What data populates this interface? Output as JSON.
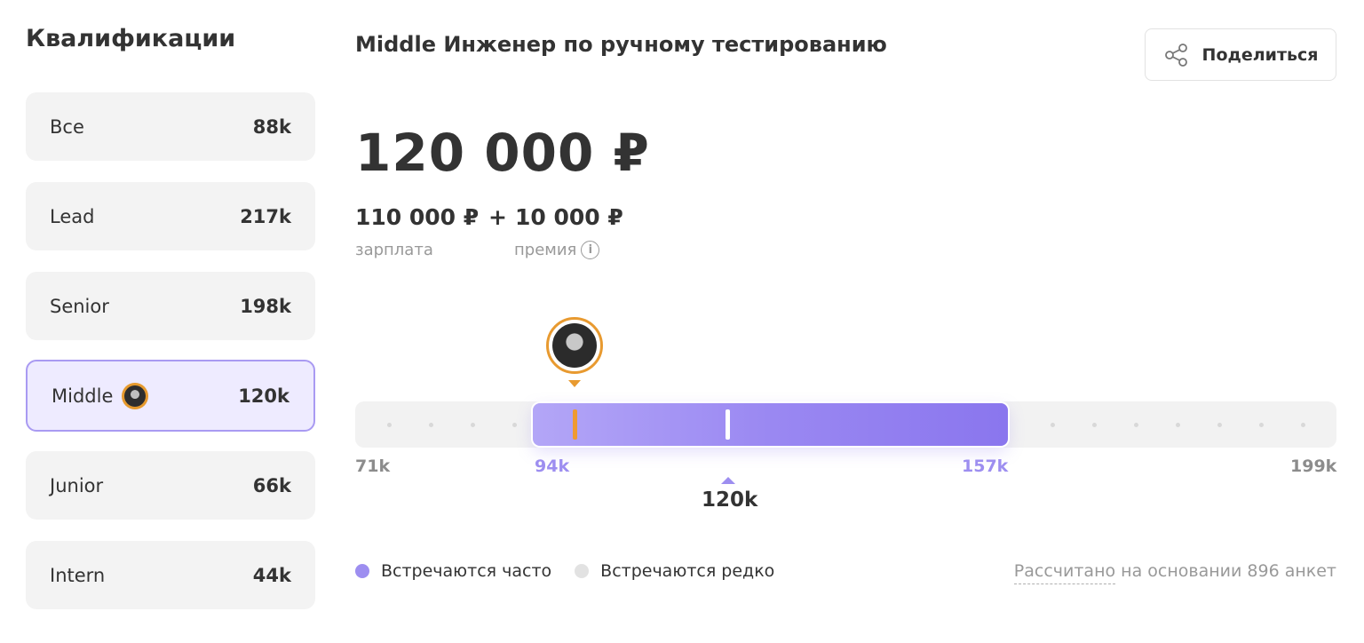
{
  "sidebar": {
    "title": "Квалификации",
    "items": [
      {
        "label": "Все",
        "value": "88k"
      },
      {
        "label": "Lead",
        "value": "217k"
      },
      {
        "label": "Senior",
        "value": "198k"
      },
      {
        "label": "Middle",
        "value": "120k",
        "active": true
      },
      {
        "label": "Junior",
        "value": "66k"
      },
      {
        "label": "Intern",
        "value": "44k"
      }
    ]
  },
  "header": {
    "job_title": "Middle Инженер по ручному тестированию",
    "share_label": "Поделиться"
  },
  "salary": {
    "total": "120 000 ₽",
    "base": "110 000 ₽",
    "plus": "+",
    "bonus": "10 000 ₽",
    "base_caption": "зарплата",
    "bonus_caption": "премия",
    "info_glyph": "i"
  },
  "range": {
    "min": "71k",
    "low": "94k",
    "high": "157k",
    "max": "199k",
    "median": "120k"
  },
  "legend": {
    "frequent": "Встречаются часто",
    "rare": "Встречаются редко",
    "frequent_color": "#9d8ef0",
    "rare_color": "#e2e2e2"
  },
  "basis": {
    "link": "Рассчитано",
    "rest": " на основании 896 анкет"
  }
}
